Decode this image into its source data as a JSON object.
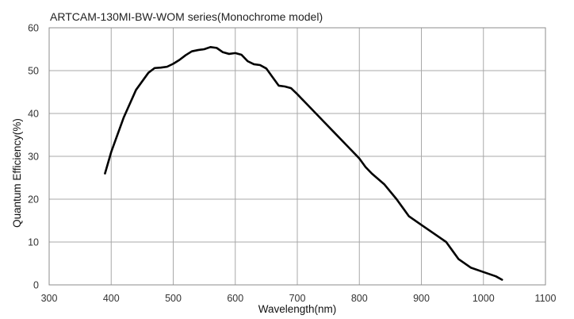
{
  "chart_data": {
    "type": "line",
    "title": "ARTCAM-130MI-BW-WOM series(Monochrome model)",
    "xlabel": "Wavelength(nm)",
    "ylabel": "Quantum  Efficiency(%)",
    "xlim": [
      300,
      1100
    ],
    "ylim": [
      0,
      60
    ],
    "xticks": [
      300,
      400,
      500,
      600,
      700,
      800,
      900,
      1000,
      1100
    ],
    "yticks": [
      0,
      10,
      20,
      30,
      40,
      50,
      60
    ],
    "grid": true,
    "legend": "none",
    "series": [
      {
        "color": "#000000",
        "x": [
          390,
          400,
          420,
          440,
          460,
          470,
          480,
          490,
          500,
          510,
          520,
          530,
          540,
          550,
          560,
          570,
          580,
          590,
          600,
          610,
          620,
          630,
          640,
          650,
          660,
          670,
          680,
          690,
          700,
          720,
          740,
          760,
          780,
          800,
          810,
          820,
          840,
          860,
          870,
          880,
          900,
          920,
          930,
          940,
          950,
          960,
          980,
          1000,
          1020,
          1030
        ],
        "y": [
          26,
          31,
          39,
          45.5,
          49.5,
          50.6,
          50.7,
          50.9,
          51.6,
          52.5,
          53.6,
          54.5,
          54.8,
          55,
          55.5,
          55.3,
          54.3,
          53.9,
          54.1,
          53.7,
          52.2,
          51.5,
          51.3,
          50.5,
          48.5,
          46.5,
          46.3,
          45.9,
          44.5,
          41.5,
          38.5,
          35.5,
          32.5,
          29.5,
          27.5,
          26,
          23.5,
          20,
          18,
          16,
          14,
          12,
          11,
          10,
          8,
          6,
          4,
          3,
          2,
          1.2
        ]
      }
    ]
  }
}
